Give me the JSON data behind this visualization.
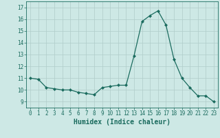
{
  "x": [
    0,
    1,
    2,
    3,
    4,
    5,
    6,
    7,
    8,
    9,
    10,
    11,
    12,
    13,
    14,
    15,
    16,
    17,
    18,
    19,
    20,
    21,
    22,
    23
  ],
  "y": [
    11.0,
    10.9,
    10.2,
    10.1,
    10.0,
    10.0,
    9.8,
    9.7,
    9.6,
    10.2,
    10.3,
    10.4,
    10.4,
    12.9,
    15.8,
    16.3,
    16.7,
    15.5,
    12.6,
    11.0,
    10.2,
    9.5,
    9.5,
    9.0
  ],
  "line_color": "#1a6b5e",
  "marker": "D",
  "marker_size": 2.0,
  "bg_color": "#cde8e5",
  "grid_color": "#b0ccc9",
  "xlabel": "Humidex (Indice chaleur)",
  "ylim": [
    8.5,
    17.5
  ],
  "xlim": [
    -0.5,
    23.5
  ],
  "yticks": [
    9,
    10,
    11,
    12,
    13,
    14,
    15,
    16,
    17
  ],
  "xticks": [
    0,
    1,
    2,
    3,
    4,
    5,
    6,
    7,
    8,
    9,
    10,
    11,
    12,
    13,
    14,
    15,
    16,
    17,
    18,
    19,
    20,
    21,
    22,
    23
  ],
  "tick_label_fontsize": 5.5,
  "xlabel_fontsize": 7.0
}
